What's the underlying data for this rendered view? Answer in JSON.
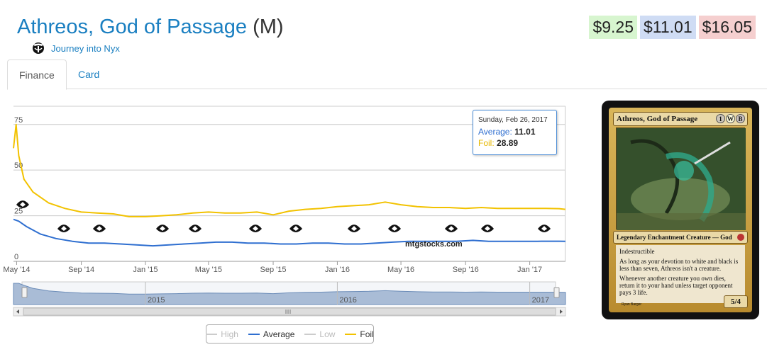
{
  "header": {
    "card_name": "Athreos, God of Passage",
    "rarity": "(M)",
    "set_icon": "journey-into-nyx-set-icon",
    "set_name": "Journey into Nyx"
  },
  "prices": {
    "low": "$9.25",
    "average": "$11.01",
    "high": "$16.05"
  },
  "tabs": [
    {
      "label": "Finance",
      "active": true
    },
    {
      "label": "Card",
      "active": false
    }
  ],
  "tooltip": {
    "date": "Sunday, Feb 26, 2017",
    "average_label": "Average:",
    "average_value": "11.01",
    "foil_label": "Foil:",
    "foil_value": "28.89"
  },
  "watermark": "mtgstocks.com",
  "legend": [
    {
      "label": "High",
      "color": "#cccccc",
      "enabled": false
    },
    {
      "label": "Average",
      "color": "#2f6fd0",
      "enabled": true
    },
    {
      "label": "Low",
      "color": "#cccccc",
      "enabled": false
    },
    {
      "label": "Foil",
      "color": "#f2c200",
      "enabled": true
    }
  ],
  "chart_data": {
    "type": "line",
    "ylim": [
      0,
      85
    ],
    "y_ticks": [
      "0",
      "25",
      "50",
      "75"
    ],
    "x_tick_labels": [
      "May '14",
      "Sep '14",
      "Jan '15",
      "May '15",
      "Sep '15",
      "Jan '16",
      "May '16",
      "Sep '16",
      "Jan '17"
    ],
    "navigator_labels": [
      "2015",
      "2016",
      "2017"
    ],
    "x_range": [
      "2014-04-25",
      "2017-03-10"
    ],
    "grid": true,
    "series": [
      {
        "name": "Foil",
        "color": "#f2c200",
        "points": [
          [
            "2014-04-25",
            62
          ],
          [
            "2014-04-30",
            75
          ],
          [
            "2014-05-05",
            58
          ],
          [
            "2014-05-15",
            45
          ],
          [
            "2014-06-01",
            38
          ],
          [
            "2014-07-01",
            32
          ],
          [
            "2014-08-01",
            29
          ],
          [
            "2014-09-01",
            27
          ],
          [
            "2014-10-01",
            26.5
          ],
          [
            "2014-11-01",
            26
          ],
          [
            "2014-12-01",
            24.5
          ],
          [
            "2015-01-01",
            24.5
          ],
          [
            "2015-02-01",
            25
          ],
          [
            "2015-03-01",
            25.5
          ],
          [
            "2015-04-01",
            26.5
          ],
          [
            "2015-05-01",
            27
          ],
          [
            "2015-06-01",
            26.5
          ],
          [
            "2015-07-01",
            26.5
          ],
          [
            "2015-08-01",
            27
          ],
          [
            "2015-09-01",
            25.5
          ],
          [
            "2015-10-01",
            27.5
          ],
          [
            "2015-11-01",
            28.5
          ],
          [
            "2015-12-01",
            29
          ],
          [
            "2016-01-01",
            30
          ],
          [
            "2016-02-01",
            30.5
          ],
          [
            "2016-03-01",
            31
          ],
          [
            "2016-04-01",
            32.5
          ],
          [
            "2016-05-01",
            31
          ],
          [
            "2016-06-01",
            30
          ],
          [
            "2016-07-01",
            29.5
          ],
          [
            "2016-08-01",
            29.5
          ],
          [
            "2016-09-01",
            29
          ],
          [
            "2016-10-01",
            29.5
          ],
          [
            "2016-11-01",
            29
          ],
          [
            "2016-12-01",
            29
          ],
          [
            "2017-01-01",
            29
          ],
          [
            "2017-02-01",
            29
          ],
          [
            "2017-02-26",
            28.89
          ],
          [
            "2017-03-10",
            28.5
          ]
        ]
      },
      {
        "name": "Average",
        "color": "#2f6fd0",
        "points": [
          [
            "2014-04-25",
            23
          ],
          [
            "2014-05-05",
            22
          ],
          [
            "2014-05-20",
            19
          ],
          [
            "2014-06-15",
            15
          ],
          [
            "2014-07-15",
            12.5
          ],
          [
            "2014-08-15",
            11
          ],
          [
            "2014-09-15",
            10
          ],
          [
            "2014-10-15",
            10
          ],
          [
            "2014-11-15",
            9.5
          ],
          [
            "2014-12-15",
            9
          ],
          [
            "2015-01-15",
            8.5
          ],
          [
            "2015-02-15",
            9
          ],
          [
            "2015-03-15",
            9.5
          ],
          [
            "2015-04-15",
            10
          ],
          [
            "2015-05-15",
            10.5
          ],
          [
            "2015-06-15",
            10.5
          ],
          [
            "2015-07-15",
            10
          ],
          [
            "2015-08-15",
            10
          ],
          [
            "2015-09-15",
            9.5
          ],
          [
            "2015-10-15",
            9.5
          ],
          [
            "2015-11-15",
            10
          ],
          [
            "2015-12-15",
            10
          ],
          [
            "2016-01-15",
            9.5
          ],
          [
            "2016-02-15",
            9.5
          ],
          [
            "2016-03-15",
            10
          ],
          [
            "2016-04-15",
            10.5
          ],
          [
            "2016-05-15",
            11
          ],
          [
            "2016-06-15",
            11
          ],
          [
            "2016-07-15",
            11
          ],
          [
            "2016-08-15",
            11
          ],
          [
            "2016-09-15",
            11.5
          ],
          [
            "2016-10-15",
            11
          ],
          [
            "2016-11-15",
            11
          ],
          [
            "2016-12-15",
            11
          ],
          [
            "2017-01-15",
            11
          ],
          [
            "2017-02-26",
            11.01
          ],
          [
            "2017-03-10",
            11
          ]
        ]
      }
    ],
    "set_release_icons": [
      "journey-into-nyx-icon",
      "m15-icon",
      "khans-of-tarkir-icon",
      "fate-reforged-icon",
      "dragons-of-tarkir-icon",
      "magic-origins-icon",
      "battle-for-zendikar-icon",
      "oath-of-the-gatewatch-icon",
      "shadows-over-innistrad-icon",
      "eldritch-moon-icon",
      "kaladesh-icon",
      "aether-revolt-icon"
    ]
  },
  "card": {
    "name": "Athreos, God of Passage",
    "mana_cost": [
      "1",
      "W",
      "B"
    ],
    "type_line": "Legendary Enchantment Creature — God",
    "rules_text": [
      "Indestructible",
      "As long as your devotion to white and black is less than seven, Athreos isn't a creature.",
      "Whenever another creature you own dies, return it to your hand unless target opponent pays 3 life."
    ],
    "power_toughness": "5/4",
    "artist": "Ryan Barger"
  }
}
